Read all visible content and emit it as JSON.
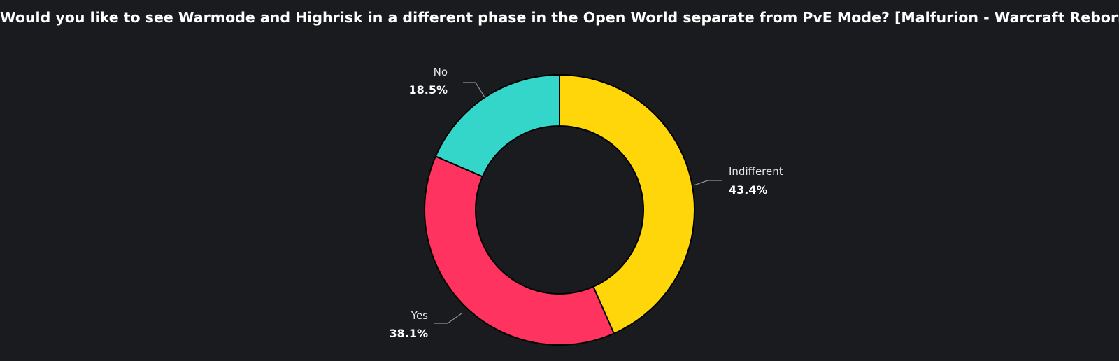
{
  "chart_data": {
    "type": "pie",
    "variant": "donut",
    "title": "Would you like to see Warmode and Highrisk in a different phase in the Open World separate from PvE Mode? [Malfurion - Warcraft Reborn]",
    "slices": [
      {
        "label": "Indifferent",
        "value": 43.4,
        "display": "43.4%",
        "color": "#ffd60a"
      },
      {
        "label": "Yes",
        "value": 38.1,
        "display": "38.1%",
        "color": "#ff3360"
      },
      {
        "label": "No",
        "value": 18.5,
        "display": "18.5%",
        "color": "#33d6c9"
      }
    ],
    "background_color": "#191b1f",
    "legend": "none",
    "start_angle": "12 o'clock",
    "direction": "clockwise"
  }
}
